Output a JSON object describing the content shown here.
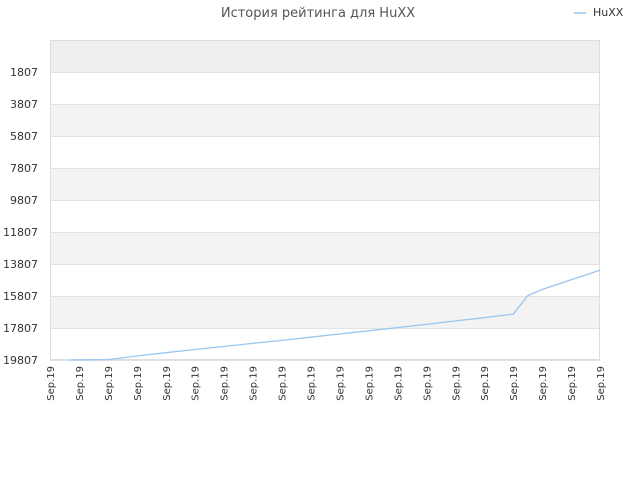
{
  "chart_data": {
    "type": "line",
    "title": "История рейтинга для HuXX",
    "legend": "top-right",
    "y_reversed": true,
    "ylim": [
      19807,
      -200
    ],
    "yticks": [
      1807,
      3807,
      5807,
      7807,
      9807,
      11807,
      13807,
      15807,
      17807,
      19807
    ],
    "x_tick_labels": [
      "Sep.19",
      "Sep.19",
      "Sep.19",
      "Sep.19",
      "Sep.19",
      "Sep.19",
      "Sep.19",
      "Sep.19",
      "Sep.19",
      "Sep.19",
      "Sep.19",
      "Sep.19",
      "Sep.19",
      "Sep.19",
      "Sep.19",
      "Sep.19",
      "Sep.19",
      "Sep.19",
      "Sep.19",
      "Sep.19"
    ],
    "series": [
      {
        "name": "HuXX",
        "color": "#99c6ef",
        "x": [
          0.7,
          2,
          3,
          4,
          5,
          6,
          7,
          8,
          9,
          10,
          11,
          12,
          13,
          14,
          15,
          16,
          16.5,
          17,
          18,
          19
        ],
        "y": [
          19807,
          19780,
          19560,
          19350,
          19150,
          18960,
          18770,
          18580,
          18380,
          18180,
          17980,
          17780,
          17580,
          17360,
          17160,
          16940,
          15790,
          15400,
          14790,
          14200
        ]
      }
    ]
  }
}
